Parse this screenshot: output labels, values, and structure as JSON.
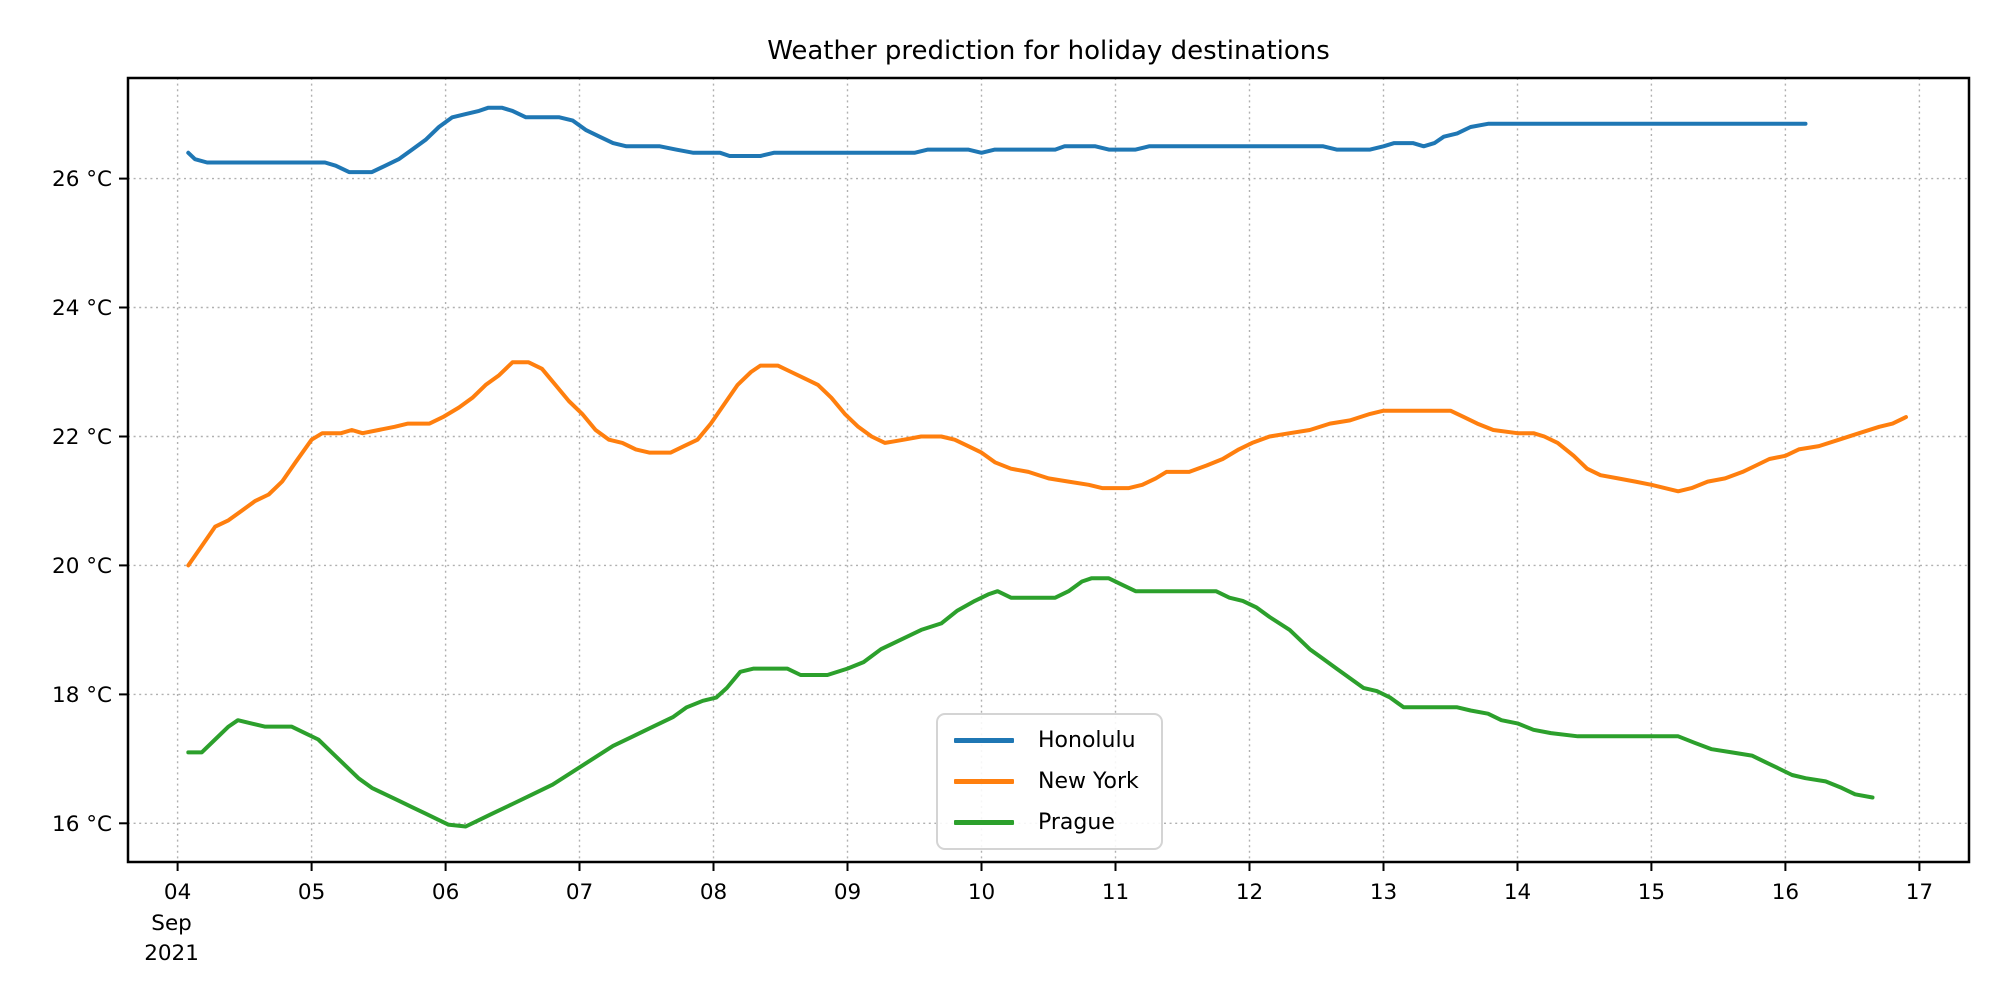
{
  "chart_data": {
    "type": "line",
    "title": "Weather prediction for holiday destinations",
    "grid": {
      "visible": true,
      "style": "dotted",
      "color": "#b0b0b0"
    },
    "spine_color": "#000000",
    "line_width": 4,
    "legend": {
      "position": "inside-lower-center-left",
      "entries": [
        "Honolulu",
        "New York",
        "Prague"
      ]
    },
    "x_axis": {
      "unit": "day of month",
      "month_label": "Sep",
      "year_label": "2021",
      "domain": [
        3.63,
        17.37
      ],
      "ticks": [
        {
          "v": 4,
          "label": "04"
        },
        {
          "v": 5,
          "label": "05"
        },
        {
          "v": 6,
          "label": "06"
        },
        {
          "v": 7,
          "label": "07"
        },
        {
          "v": 8,
          "label": "08"
        },
        {
          "v": 9,
          "label": "09"
        },
        {
          "v": 10,
          "label": "10"
        },
        {
          "v": 11,
          "label": "11"
        },
        {
          "v": 12,
          "label": "12"
        },
        {
          "v": 13,
          "label": "13"
        },
        {
          "v": 14,
          "label": "14"
        },
        {
          "v": 15,
          "label": "15"
        },
        {
          "v": 16,
          "label": "16"
        },
        {
          "v": 17,
          "label": "17"
        }
      ]
    },
    "y_axis": {
      "unit": "°C",
      "domain": [
        15.4,
        27.56
      ],
      "ticks": [
        {
          "v": 16,
          "label": "16 °C"
        },
        {
          "v": 18,
          "label": "18 °C"
        },
        {
          "v": 20,
          "label": "20 °C"
        },
        {
          "v": 22,
          "label": "22 °C"
        },
        {
          "v": 24,
          "label": "24 °C"
        },
        {
          "v": 26,
          "label": "26 °C"
        }
      ]
    },
    "series": [
      {
        "name": "Honolulu",
        "color": "#1f77b4",
        "points": [
          [
            4.08,
            26.4
          ],
          [
            4.13,
            26.3
          ],
          [
            4.22,
            26.25
          ],
          [
            5.1,
            26.25
          ],
          [
            5.18,
            26.2
          ],
          [
            5.28,
            26.1
          ],
          [
            5.45,
            26.1
          ],
          [
            5.55,
            26.2
          ],
          [
            5.65,
            26.3
          ],
          [
            5.75,
            26.45
          ],
          [
            5.85,
            26.6
          ],
          [
            5.95,
            26.8
          ],
          [
            6.05,
            26.95
          ],
          [
            6.15,
            27.0
          ],
          [
            6.25,
            27.05
          ],
          [
            6.32,
            27.1
          ],
          [
            6.42,
            27.1
          ],
          [
            6.5,
            27.05
          ],
          [
            6.6,
            26.95
          ],
          [
            6.85,
            26.95
          ],
          [
            6.95,
            26.9
          ],
          [
            7.05,
            26.75
          ],
          [
            7.15,
            26.65
          ],
          [
            7.25,
            26.55
          ],
          [
            7.35,
            26.5
          ],
          [
            7.6,
            26.5
          ],
          [
            7.72,
            26.45
          ],
          [
            7.85,
            26.4
          ],
          [
            8.05,
            26.4
          ],
          [
            8.12,
            26.35
          ],
          [
            8.35,
            26.35
          ],
          [
            8.45,
            26.4
          ],
          [
            9.5,
            26.4
          ],
          [
            9.6,
            26.45
          ],
          [
            9.9,
            26.45
          ],
          [
            10.0,
            26.4
          ],
          [
            10.1,
            26.45
          ],
          [
            10.55,
            26.45
          ],
          [
            10.62,
            26.5
          ],
          [
            10.85,
            26.5
          ],
          [
            10.95,
            26.45
          ],
          [
            11.15,
            26.45
          ],
          [
            11.25,
            26.5
          ],
          [
            12.55,
            26.5
          ],
          [
            12.65,
            26.45
          ],
          [
            12.9,
            26.45
          ],
          [
            13.0,
            26.5
          ],
          [
            13.08,
            26.55
          ],
          [
            13.22,
            26.55
          ],
          [
            13.3,
            26.5
          ],
          [
            13.38,
            26.55
          ],
          [
            13.45,
            26.65
          ],
          [
            13.55,
            26.7
          ],
          [
            13.65,
            26.8
          ],
          [
            13.78,
            26.85
          ],
          [
            16.15,
            26.85
          ]
        ]
      },
      {
        "name": "New York",
        "color": "#ff7f0e",
        "points": [
          [
            4.08,
            20.0
          ],
          [
            4.18,
            20.3
          ],
          [
            4.28,
            20.6
          ],
          [
            4.38,
            20.7
          ],
          [
            4.48,
            20.85
          ],
          [
            4.58,
            21.0
          ],
          [
            4.68,
            21.1
          ],
          [
            4.78,
            21.3
          ],
          [
            4.88,
            21.6
          ],
          [
            5.0,
            21.95
          ],
          [
            5.08,
            22.05
          ],
          [
            5.22,
            22.05
          ],
          [
            5.3,
            22.1
          ],
          [
            5.38,
            22.05
          ],
          [
            5.5,
            22.1
          ],
          [
            5.62,
            22.15
          ],
          [
            5.72,
            22.2
          ],
          [
            5.88,
            22.2
          ],
          [
            5.98,
            22.3
          ],
          [
            6.1,
            22.45
          ],
          [
            6.2,
            22.6
          ],
          [
            6.3,
            22.8
          ],
          [
            6.4,
            22.95
          ],
          [
            6.5,
            23.15
          ],
          [
            6.62,
            23.15
          ],
          [
            6.72,
            23.05
          ],
          [
            6.82,
            22.8
          ],
          [
            6.92,
            22.55
          ],
          [
            7.02,
            22.35
          ],
          [
            7.12,
            22.1
          ],
          [
            7.22,
            21.95
          ],
          [
            7.32,
            21.9
          ],
          [
            7.42,
            21.8
          ],
          [
            7.52,
            21.75
          ],
          [
            7.68,
            21.75
          ],
          [
            7.78,
            21.85
          ],
          [
            7.88,
            21.95
          ],
          [
            7.98,
            22.2
          ],
          [
            8.08,
            22.5
          ],
          [
            8.18,
            22.8
          ],
          [
            8.28,
            23.0
          ],
          [
            8.35,
            23.1
          ],
          [
            8.48,
            23.1
          ],
          [
            8.58,
            23.0
          ],
          [
            8.68,
            22.9
          ],
          [
            8.78,
            22.8
          ],
          [
            8.88,
            22.6
          ],
          [
            8.98,
            22.35
          ],
          [
            9.08,
            22.15
          ],
          [
            9.18,
            22.0
          ],
          [
            9.28,
            21.9
          ],
          [
            9.42,
            21.95
          ],
          [
            9.55,
            22.0
          ],
          [
            9.7,
            22.0
          ],
          [
            9.8,
            21.95
          ],
          [
            9.9,
            21.85
          ],
          [
            10.0,
            21.75
          ],
          [
            10.1,
            21.6
          ],
          [
            10.22,
            21.5
          ],
          [
            10.35,
            21.45
          ],
          [
            10.5,
            21.35
          ],
          [
            10.65,
            21.3
          ],
          [
            10.8,
            21.25
          ],
          [
            10.9,
            21.2
          ],
          [
            11.1,
            21.2
          ],
          [
            11.2,
            21.25
          ],
          [
            11.3,
            21.35
          ],
          [
            11.38,
            21.45
          ],
          [
            11.55,
            21.45
          ],
          [
            11.68,
            21.55
          ],
          [
            11.8,
            21.65
          ],
          [
            11.92,
            21.8
          ],
          [
            12.02,
            21.9
          ],
          [
            12.15,
            22.0
          ],
          [
            12.3,
            22.05
          ],
          [
            12.45,
            22.1
          ],
          [
            12.6,
            22.2
          ],
          [
            12.75,
            22.25
          ],
          [
            12.9,
            22.35
          ],
          [
            13.0,
            22.4
          ],
          [
            13.5,
            22.4
          ],
          [
            13.6,
            22.3
          ],
          [
            13.7,
            22.2
          ],
          [
            13.82,
            22.1
          ],
          [
            14.0,
            22.05
          ],
          [
            14.12,
            22.05
          ],
          [
            14.2,
            22.0
          ],
          [
            14.3,
            21.9
          ],
          [
            14.42,
            21.7
          ],
          [
            14.52,
            21.5
          ],
          [
            14.62,
            21.4
          ],
          [
            14.75,
            21.35
          ],
          [
            14.88,
            21.3
          ],
          [
            15.0,
            21.25
          ],
          [
            15.1,
            21.2
          ],
          [
            15.2,
            21.15
          ],
          [
            15.3,
            21.2
          ],
          [
            15.42,
            21.3
          ],
          [
            15.55,
            21.35
          ],
          [
            15.68,
            21.45
          ],
          [
            15.78,
            21.55
          ],
          [
            15.88,
            21.65
          ],
          [
            16.0,
            21.7
          ],
          [
            16.1,
            21.8
          ],
          [
            16.25,
            21.85
          ],
          [
            16.4,
            21.95
          ],
          [
            16.55,
            22.05
          ],
          [
            16.7,
            22.15
          ],
          [
            16.8,
            22.2
          ],
          [
            16.9,
            22.3
          ]
        ]
      },
      {
        "name": "Prague",
        "color": "#2ca02c",
        "points": [
          [
            4.08,
            17.1
          ],
          [
            4.18,
            17.1
          ],
          [
            4.28,
            17.3
          ],
          [
            4.38,
            17.5
          ],
          [
            4.45,
            17.6
          ],
          [
            4.55,
            17.55
          ],
          [
            4.65,
            17.5
          ],
          [
            4.85,
            17.5
          ],
          [
            4.95,
            17.4
          ],
          [
            5.05,
            17.3
          ],
          [
            5.15,
            17.1
          ],
          [
            5.25,
            16.9
          ],
          [
            5.35,
            16.7
          ],
          [
            5.45,
            16.55
          ],
          [
            5.55,
            16.45
          ],
          [
            5.65,
            16.35
          ],
          [
            5.75,
            16.25
          ],
          [
            5.85,
            16.15
          ],
          [
            5.95,
            16.05
          ],
          [
            6.02,
            15.98
          ],
          [
            6.15,
            15.95
          ],
          [
            6.25,
            16.05
          ],
          [
            6.35,
            16.15
          ],
          [
            6.5,
            16.3
          ],
          [
            6.65,
            16.45
          ],
          [
            6.8,
            16.6
          ],
          [
            6.95,
            16.8
          ],
          [
            7.1,
            17.0
          ],
          [
            7.25,
            17.2
          ],
          [
            7.4,
            17.35
          ],
          [
            7.55,
            17.5
          ],
          [
            7.7,
            17.65
          ],
          [
            7.8,
            17.8
          ],
          [
            7.92,
            17.9
          ],
          [
            8.02,
            17.95
          ],
          [
            8.1,
            18.1
          ],
          [
            8.2,
            18.35
          ],
          [
            8.3,
            18.4
          ],
          [
            8.55,
            18.4
          ],
          [
            8.65,
            18.3
          ],
          [
            8.85,
            18.3
          ],
          [
            9.0,
            18.4
          ],
          [
            9.12,
            18.5
          ],
          [
            9.25,
            18.7
          ],
          [
            9.4,
            18.85
          ],
          [
            9.55,
            19.0
          ],
          [
            9.7,
            19.1
          ],
          [
            9.82,
            19.3
          ],
          [
            9.95,
            19.45
          ],
          [
            10.05,
            19.55
          ],
          [
            10.12,
            19.6
          ],
          [
            10.22,
            19.5
          ],
          [
            10.55,
            19.5
          ],
          [
            10.65,
            19.6
          ],
          [
            10.75,
            19.75
          ],
          [
            10.82,
            19.8
          ],
          [
            10.95,
            19.8
          ],
          [
            11.05,
            19.7
          ],
          [
            11.15,
            19.6
          ],
          [
            11.75,
            19.6
          ],
          [
            11.85,
            19.5
          ],
          [
            11.95,
            19.45
          ],
          [
            12.05,
            19.35
          ],
          [
            12.15,
            19.2
          ],
          [
            12.3,
            19.0
          ],
          [
            12.45,
            18.7
          ],
          [
            12.55,
            18.55
          ],
          [
            12.65,
            18.4
          ],
          [
            12.75,
            18.25
          ],
          [
            12.85,
            18.1
          ],
          [
            12.95,
            18.05
          ],
          [
            13.05,
            17.95
          ],
          [
            13.15,
            17.8
          ],
          [
            13.55,
            17.8
          ],
          [
            13.65,
            17.75
          ],
          [
            13.78,
            17.7
          ],
          [
            13.88,
            17.6
          ],
          [
            14.0,
            17.55
          ],
          [
            14.12,
            17.45
          ],
          [
            14.25,
            17.4
          ],
          [
            14.45,
            17.35
          ],
          [
            15.2,
            17.35
          ],
          [
            15.32,
            17.25
          ],
          [
            15.45,
            17.15
          ],
          [
            15.6,
            17.1
          ],
          [
            15.75,
            17.05
          ],
          [
            15.85,
            16.95
          ],
          [
            15.95,
            16.85
          ],
          [
            16.05,
            16.75
          ],
          [
            16.15,
            16.7
          ],
          [
            16.3,
            16.65
          ],
          [
            16.42,
            16.55
          ],
          [
            16.52,
            16.45
          ],
          [
            16.65,
            16.4
          ]
        ]
      }
    ]
  }
}
